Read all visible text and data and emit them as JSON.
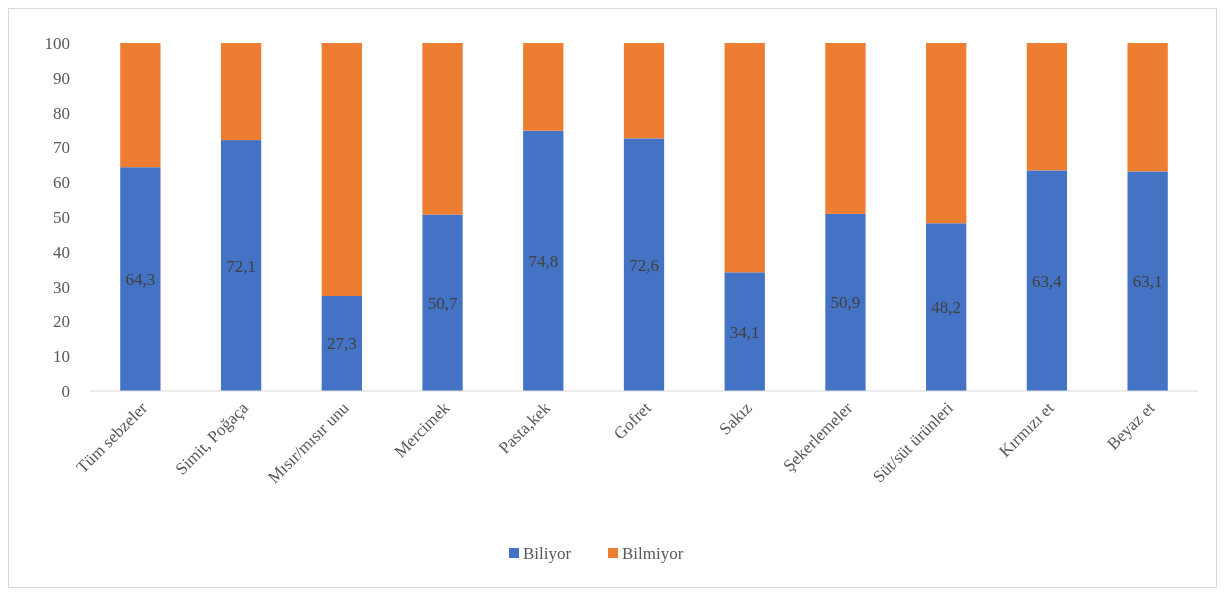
{
  "chart_data": {
    "type": "bar",
    "stacked": true,
    "categories": [
      "Tüm sebzeler",
      "Simit, Poğaça",
      "Mısır/mısır unu",
      "Mercimek",
      "Pasta,kek",
      "Gofret",
      "Sakız",
      "Şekerlemeler",
      "Süt/süt ürünleri",
      "Kırmızı et",
      "Beyaz et"
    ],
    "series": [
      {
        "name": "Biliyor",
        "color": "#4472c4",
        "values": [
          64.3,
          72.1,
          27.3,
          50.7,
          74.8,
          72.6,
          34.1,
          50.9,
          48.2,
          63.4,
          63.1
        ],
        "value_labels": [
          "64,3",
          "72,1",
          "27,3",
          "50,7",
          "74,8",
          "72,6",
          "34,1",
          "50,9",
          "48,2",
          "63,4",
          "63,1"
        ]
      },
      {
        "name": "Bilmiyor",
        "color": "#ed7d31",
        "values": [
          35.7,
          27.9,
          72.7,
          49.3,
          25.2,
          27.4,
          65.9,
          49.1,
          51.8,
          36.6,
          36.9
        ]
      }
    ],
    "ylim": [
      0,
      100
    ],
    "yticks": [
      0,
      10,
      20,
      30,
      40,
      50,
      60,
      70,
      80,
      90,
      100
    ],
    "grid": false,
    "legend": "bottom"
  }
}
